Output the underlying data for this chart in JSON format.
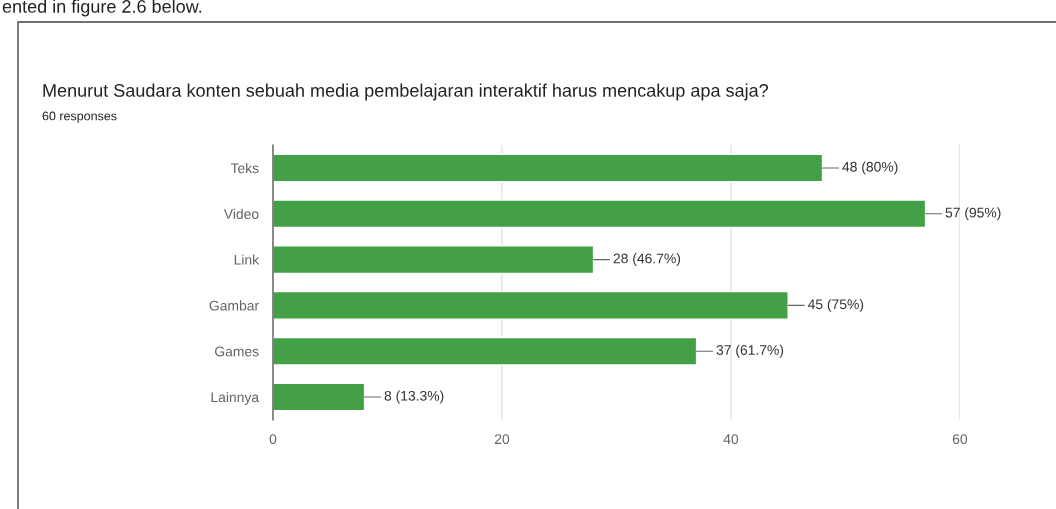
{
  "chart_data": {
    "type": "bar",
    "orientation": "horizontal",
    "title": "Menurut Saudara konten sebuah media pembelajaran interaktif harus mencakup apa saja?",
    "subtitle": "60 responses",
    "annotations": [
      "ented in figure 2.6 below."
    ],
    "categories": [
      "Teks",
      "Video",
      "Link",
      "Gambar",
      "Games",
      "Lainnya"
    ],
    "values": [
      48,
      57,
      28,
      45,
      37,
      8
    ],
    "value_labels": [
      "48 (80%)",
      "57 (95%)",
      "28 (46.7%)",
      "45 (75%)",
      "37 (61.7%)",
      "8 (13.3%)"
    ],
    "color": "#43a047",
    "xlim": [
      0,
      60
    ],
    "xticks": [
      0,
      20,
      40,
      60
    ],
    "grid": "x",
    "legend": false
  }
}
